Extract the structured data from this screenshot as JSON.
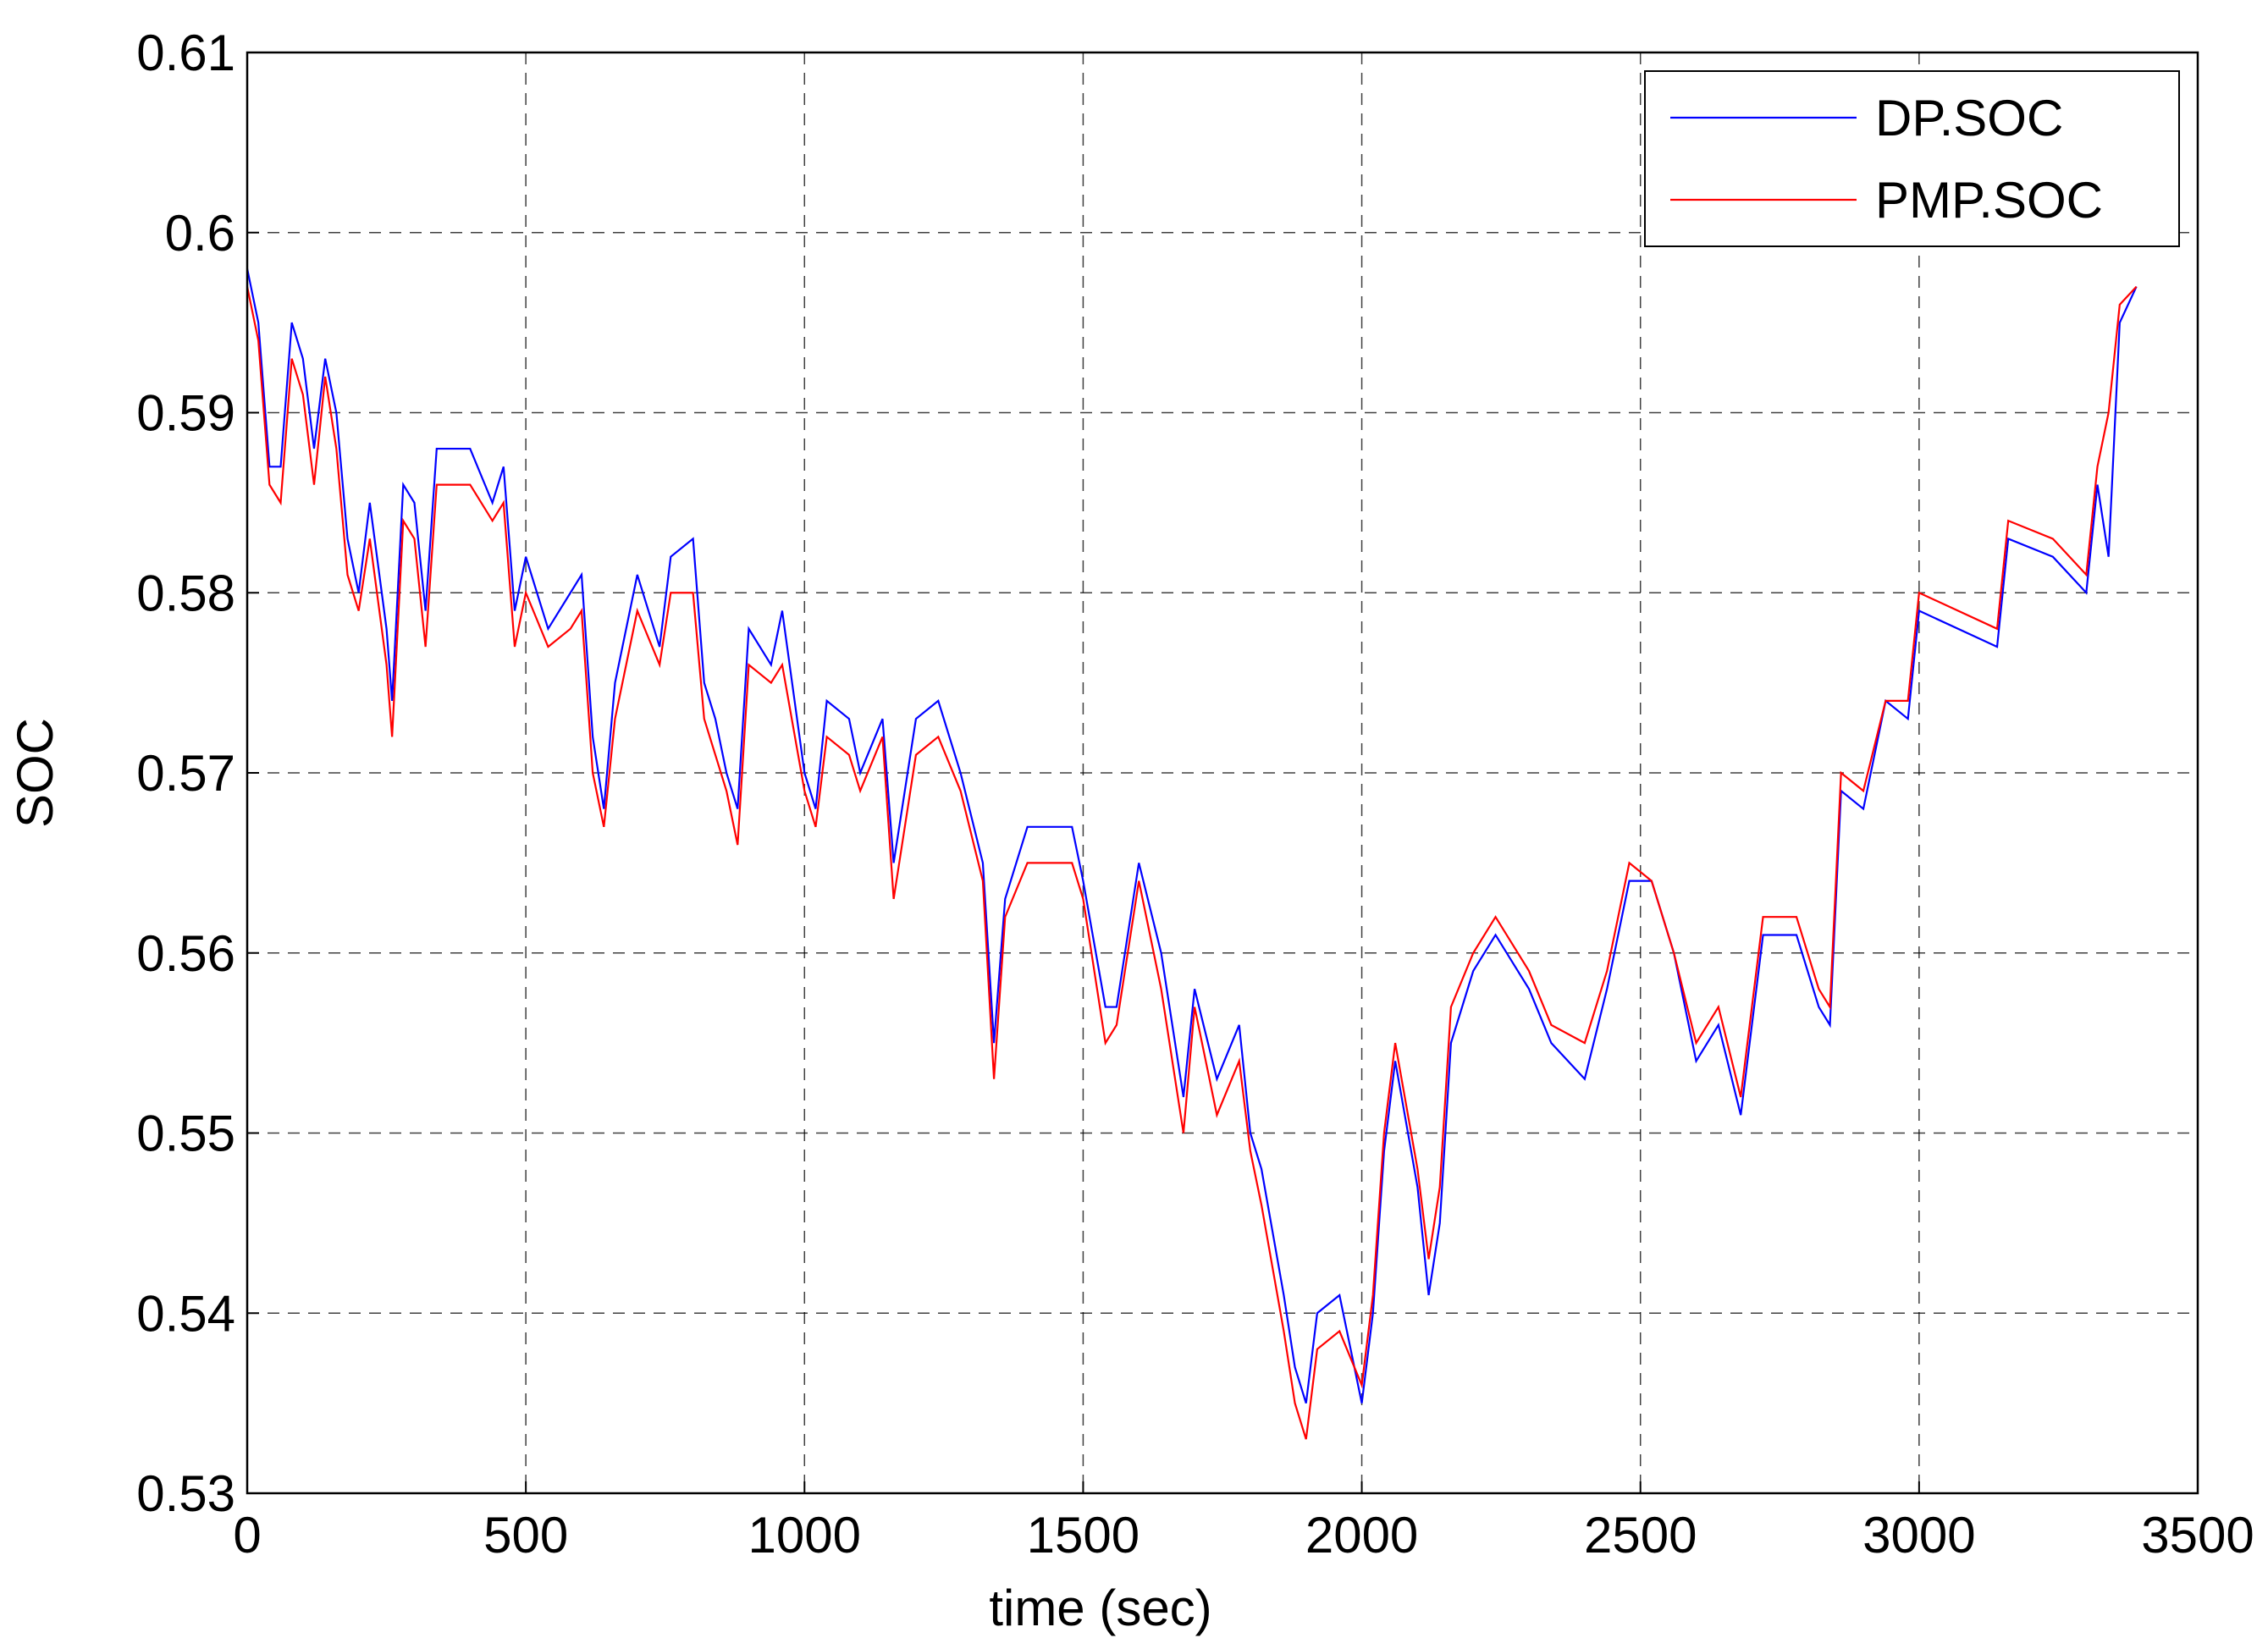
{
  "chart_data": {
    "type": "line",
    "x_label": "time (sec)",
    "y_label": "SOC",
    "x": [
      0,
      20,
      40,
      60,
      80,
      100,
      120,
      140,
      160,
      180,
      200,
      220,
      250,
      260,
      280,
      300,
      320,
      340,
      400,
      440,
      460,
      480,
      500,
      540,
      580,
      600,
      620,
      640,
      660,
      700,
      740,
      760,
      800,
      820,
      840,
      860,
      880,
      900,
      940,
      960,
      1000,
      1020,
      1040,
      1080,
      1100,
      1140,
      1160,
      1200,
      1240,
      1280,
      1320,
      1340,
      1360,
      1400,
      1480,
      1500,
      1540,
      1560,
      1600,
      1640,
      1680,
      1700,
      1740,
      1780,
      1800,
      1820,
      1860,
      1880,
      1900,
      1920,
      1960,
      2000,
      2020,
      2040,
      2060,
      2100,
      2120,
      2140,
      2160,
      2200,
      2240,
      2300,
      2340,
      2400,
      2440,
      2480,
      2520,
      2560,
      2600,
      2640,
      2680,
      2720,
      2780,
      2820,
      2840,
      2860,
      2900,
      2940,
      2980,
      3000,
      3140,
      3160,
      3240,
      3300,
      3320,
      3340,
      3360,
      3390
    ],
    "series": [
      {
        "name": "DP.SOC",
        "color": "#0000ff",
        "values": [
          0.598,
          0.595,
          0.587,
          0.587,
          0.595,
          0.593,
          0.588,
          0.593,
          0.59,
          0.583,
          0.58,
          0.585,
          0.578,
          0.574,
          0.586,
          0.585,
          0.579,
          0.588,
          0.588,
          0.585,
          0.587,
          0.579,
          0.582,
          0.578,
          0.58,
          0.581,
          0.572,
          0.568,
          0.575,
          0.581,
          0.577,
          0.582,
          0.583,
          0.575,
          0.573,
          0.57,
          0.568,
          0.578,
          0.576,
          0.579,
          0.57,
          0.568,
          0.574,
          0.573,
          0.57,
          0.573,
          0.565,
          0.573,
          0.574,
          0.57,
          0.565,
          0.555,
          0.563,
          0.567,
          0.567,
          0.564,
          0.557,
          0.557,
          0.565,
          0.56,
          0.552,
          0.558,
          0.553,
          0.556,
          0.55,
          0.548,
          0.541,
          0.537,
          0.535,
          0.54,
          0.541,
          0.535,
          0.54,
          0.549,
          0.554,
          0.547,
          0.541,
          0.545,
          0.555,
          0.559,
          0.561,
          0.558,
          0.555,
          0.553,
          0.558,
          0.564,
          0.564,
          0.56,
          0.554,
          0.556,
          0.551,
          0.561,
          0.561,
          0.557,
          0.556,
          0.569,
          0.568,
          0.574,
          0.573,
          0.579,
          0.577,
          0.583,
          0.582,
          0.58,
          0.586,
          0.582,
          0.595,
          0.597
        ]
      },
      {
        "name": "PMP.SOC",
        "color": "#ff0000",
        "values": [
          0.597,
          0.594,
          0.586,
          0.585,
          0.593,
          0.591,
          0.586,
          0.592,
          0.588,
          0.581,
          0.579,
          0.583,
          0.576,
          0.572,
          0.584,
          0.583,
          0.577,
          0.586,
          0.586,
          0.584,
          0.585,
          0.577,
          0.58,
          0.577,
          0.578,
          0.579,
          0.57,
          0.567,
          0.573,
          0.579,
          0.576,
          0.58,
          0.58,
          0.573,
          0.571,
          0.569,
          0.566,
          0.576,
          0.575,
          0.576,
          0.569,
          0.567,
          0.572,
          0.571,
          0.569,
          0.572,
          0.563,
          0.571,
          0.572,
          0.569,
          0.564,
          0.553,
          0.562,
          0.565,
          0.565,
          0.563,
          0.555,
          0.556,
          0.564,
          0.558,
          0.55,
          0.557,
          0.551,
          0.554,
          0.549,
          0.546,
          0.539,
          0.535,
          0.533,
          0.538,
          0.539,
          0.536,
          0.541,
          0.55,
          0.555,
          0.548,
          0.543,
          0.547,
          0.557,
          0.56,
          0.562,
          0.559,
          0.556,
          0.555,
          0.559,
          0.565,
          0.564,
          0.56,
          0.555,
          0.557,
          0.552,
          0.562,
          0.562,
          0.558,
          0.557,
          0.57,
          0.569,
          0.574,
          0.574,
          0.58,
          0.578,
          0.584,
          0.583,
          0.581,
          0.587,
          0.59,
          0.596,
          0.597
        ]
      }
    ],
    "xlim": [
      0,
      3500
    ],
    "xticks": [
      0,
      500,
      1000,
      1500,
      2000,
      2500,
      3000,
      3500
    ],
    "ylim": [
      0.53,
      0.61
    ],
    "yticks": [
      0.53,
      0.54,
      0.55,
      0.56,
      0.57,
      0.58,
      0.59,
      0.6,
      0.61
    ],
    "grid": true,
    "legend": "upper right"
  }
}
